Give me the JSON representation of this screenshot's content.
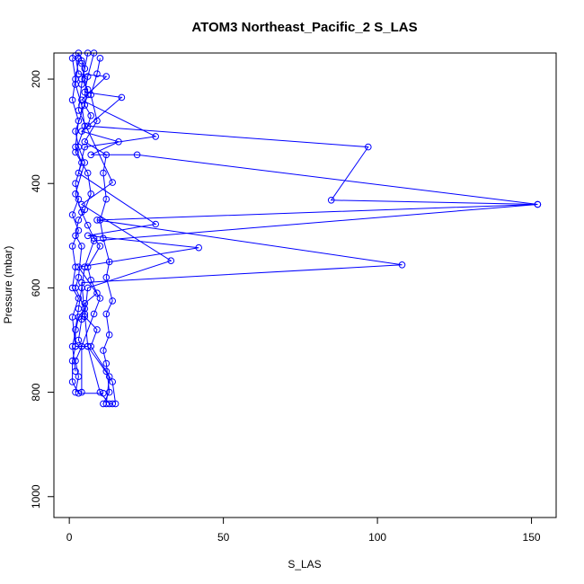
{
  "chart_data": {
    "type": "line",
    "title": "ATOM3 Northeast_Pacific_2 S_LAS",
    "xlabel": "S_LAS",
    "ylabel": "Pressure (mbar)",
    "xlim": [
      -5,
      158
    ],
    "ylim": [
      1040,
      150
    ],
    "y_reversed": true,
    "x_ticks": [
      0,
      50,
      100,
      150
    ],
    "y_ticks": [
      200,
      400,
      600,
      800,
      1000
    ],
    "grid": false,
    "legend": "none",
    "color": "#0000ff",
    "marker": "open-circle",
    "series": [
      {
        "points": [
          [
            3,
            150
          ],
          [
            4,
            165
          ],
          [
            5,
            180
          ],
          [
            4,
            200
          ],
          [
            6,
            220
          ],
          [
            5,
            250
          ],
          [
            7,
            270
          ],
          [
            6,
            290
          ],
          [
            97,
            330
          ],
          [
            85,
            432
          ],
          [
            152,
            440
          ],
          [
            8,
            510
          ],
          [
            5,
            560
          ],
          [
            4,
            600
          ],
          [
            3,
            640
          ],
          [
            2,
            680
          ],
          [
            2,
            712
          ],
          [
            6,
            712
          ],
          [
            10,
            800
          ],
          [
            13,
            822
          ],
          [
            14,
            822
          ]
        ]
      },
      {
        "points": [
          [
            8,
            150
          ],
          [
            6,
            195
          ],
          [
            5,
            225
          ],
          [
            17,
            235
          ],
          [
            4,
            300
          ],
          [
            16,
            320
          ],
          [
            7,
            345
          ],
          [
            22,
            345
          ],
          [
            152,
            440
          ],
          [
            9,
            470
          ],
          [
            108,
            556
          ],
          [
            4,
            590
          ],
          [
            5,
            650
          ],
          [
            6,
            712
          ],
          [
            13,
            770
          ],
          [
            12,
            822
          ]
        ]
      },
      {
        "points": [
          [
            2,
            155
          ],
          [
            3,
            190
          ],
          [
            12,
            195
          ],
          [
            4,
            240
          ],
          [
            28,
            310
          ],
          [
            5,
            330
          ],
          [
            3,
            380
          ],
          [
            28,
            478
          ],
          [
            6,
            500
          ],
          [
            42,
            523
          ],
          [
            3,
            560
          ],
          [
            10,
            620
          ],
          [
            8,
            650
          ],
          [
            4,
            712
          ],
          [
            4,
            800
          ]
        ]
      },
      {
        "points": [
          [
            6,
            150
          ],
          [
            4,
            210
          ],
          [
            3,
            260
          ],
          [
            14,
            398
          ],
          [
            4,
            440
          ],
          [
            33,
            548
          ],
          [
            6,
            600
          ],
          [
            5,
            655
          ],
          [
            9,
            680
          ],
          [
            7,
            712
          ],
          [
            12,
            760
          ],
          [
            14,
            780
          ],
          [
            15,
            822
          ]
        ]
      },
      {
        "points": [
          [
            1,
            160
          ],
          [
            2,
            200
          ],
          [
            1,
            240
          ],
          [
            3,
            280
          ],
          [
            2,
            330
          ],
          [
            4,
            360
          ],
          [
            2,
            400
          ],
          [
            3,
            430
          ],
          [
            1,
            460
          ],
          [
            3,
            490
          ],
          [
            1,
            520
          ],
          [
            2,
            560
          ],
          [
            1,
            600
          ],
          [
            3,
            620
          ],
          [
            1,
            656
          ],
          [
            2,
            712
          ],
          [
            1,
            740
          ],
          [
            1,
            780
          ],
          [
            3,
            802
          ],
          [
            11,
            802
          ]
        ]
      },
      {
        "points": [
          [
            10,
            160
          ],
          [
            9,
            190
          ],
          [
            7,
            230
          ],
          [
            9,
            280
          ],
          [
            5,
            320
          ],
          [
            12,
            345
          ],
          [
            11,
            380
          ],
          [
            12,
            430
          ],
          [
            10,
            470
          ],
          [
            11,
            505
          ],
          [
            13,
            550
          ],
          [
            12,
            580
          ],
          [
            14,
            625
          ],
          [
            12,
            650
          ],
          [
            13,
            690
          ],
          [
            11,
            720
          ],
          [
            12,
            745
          ],
          [
            13,
            800
          ],
          [
            11,
            822
          ]
        ]
      },
      {
        "points": [
          [
            4,
            170
          ],
          [
            5,
            200
          ],
          [
            6,
            230
          ],
          [
            2,
            300
          ],
          [
            3,
            330
          ],
          [
            5,
            360
          ],
          [
            2,
            420
          ],
          [
            4,
            455
          ],
          [
            6,
            480
          ],
          [
            8,
            505
          ],
          [
            10,
            520
          ],
          [
            6,
            560
          ],
          [
            7,
            585
          ],
          [
            9,
            610
          ],
          [
            5,
            630
          ],
          [
            4,
            660
          ],
          [
            3,
            700
          ],
          [
            4,
            712
          ],
          [
            2,
            740
          ],
          [
            3,
            770
          ],
          [
            2,
            800
          ]
        ]
      },
      {
        "points": [
          [
            3,
            160
          ],
          [
            2,
            210
          ],
          [
            4,
            250
          ],
          [
            5,
            290
          ],
          [
            2,
            340
          ],
          [
            6,
            380
          ],
          [
            7,
            420
          ],
          [
            5,
            450
          ],
          [
            3,
            470
          ],
          [
            2,
            500
          ],
          [
            4,
            520
          ],
          [
            3,
            580
          ],
          [
            2,
            600
          ],
          [
            5,
            640
          ],
          [
            3,
            656
          ],
          [
            1,
            712
          ],
          [
            2,
            760
          ]
        ]
      }
    ]
  }
}
